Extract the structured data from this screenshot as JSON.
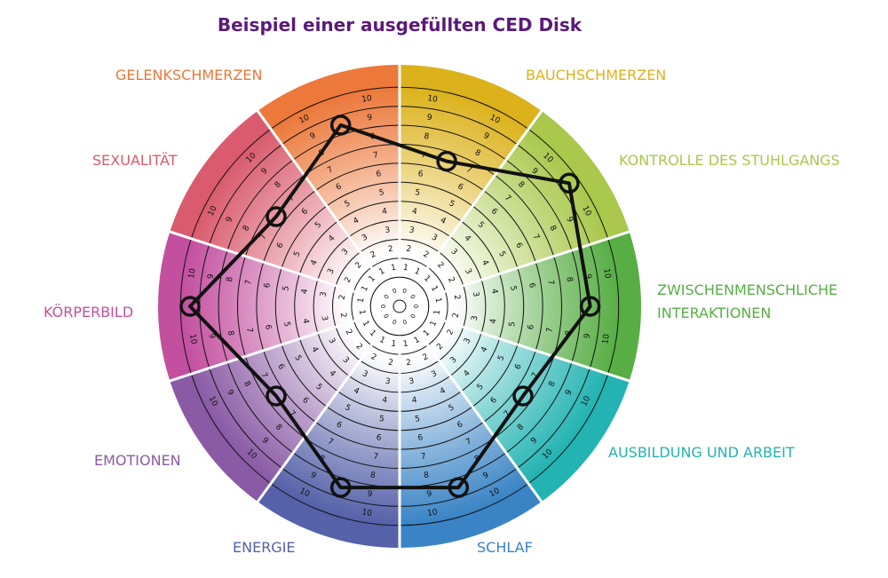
{
  "chart_data": {
    "type": "radar",
    "title": "Beispiel einer ausgefüllten CED Disk",
    "scale": {
      "min": 0,
      "max": 10
    },
    "grid": true,
    "categories": [
      {
        "name": "BAUCHSCHMERZEN",
        "value": 7,
        "color": "#dcb21c"
      },
      {
        "name": "KONTROLLE DES STUHLGANGS",
        "value": 10,
        "color": "#a9c84c"
      },
      {
        "name": "ZWISCHENMENSCHLICHE INTERAKTIONEN",
        "value": 9,
        "color": "#58ae45"
      },
      {
        "name": "AUSBILDUNG UND ARBEIT",
        "value": 7,
        "color": "#22b3b2"
      },
      {
        "name": "SCHLAF",
        "value": 9,
        "color": "#3a84c5"
      },
      {
        "name": "ENERGIE",
        "value": 9,
        "color": "#5561a9"
      },
      {
        "name": "EMOTIONEN",
        "value": 7,
        "color": "#8a5aa5"
      },
      {
        "name": "KÖRPERBILD",
        "value": 10,
        "color": "#c34f9f"
      },
      {
        "name": "SEXUALITÄT",
        "value": 7,
        "color": "#d95b6d"
      },
      {
        "name": "GELENKSCHMERZEN",
        "value": 9,
        "color": "#ec783a"
      }
    ],
    "line_color": "#111111"
  }
}
